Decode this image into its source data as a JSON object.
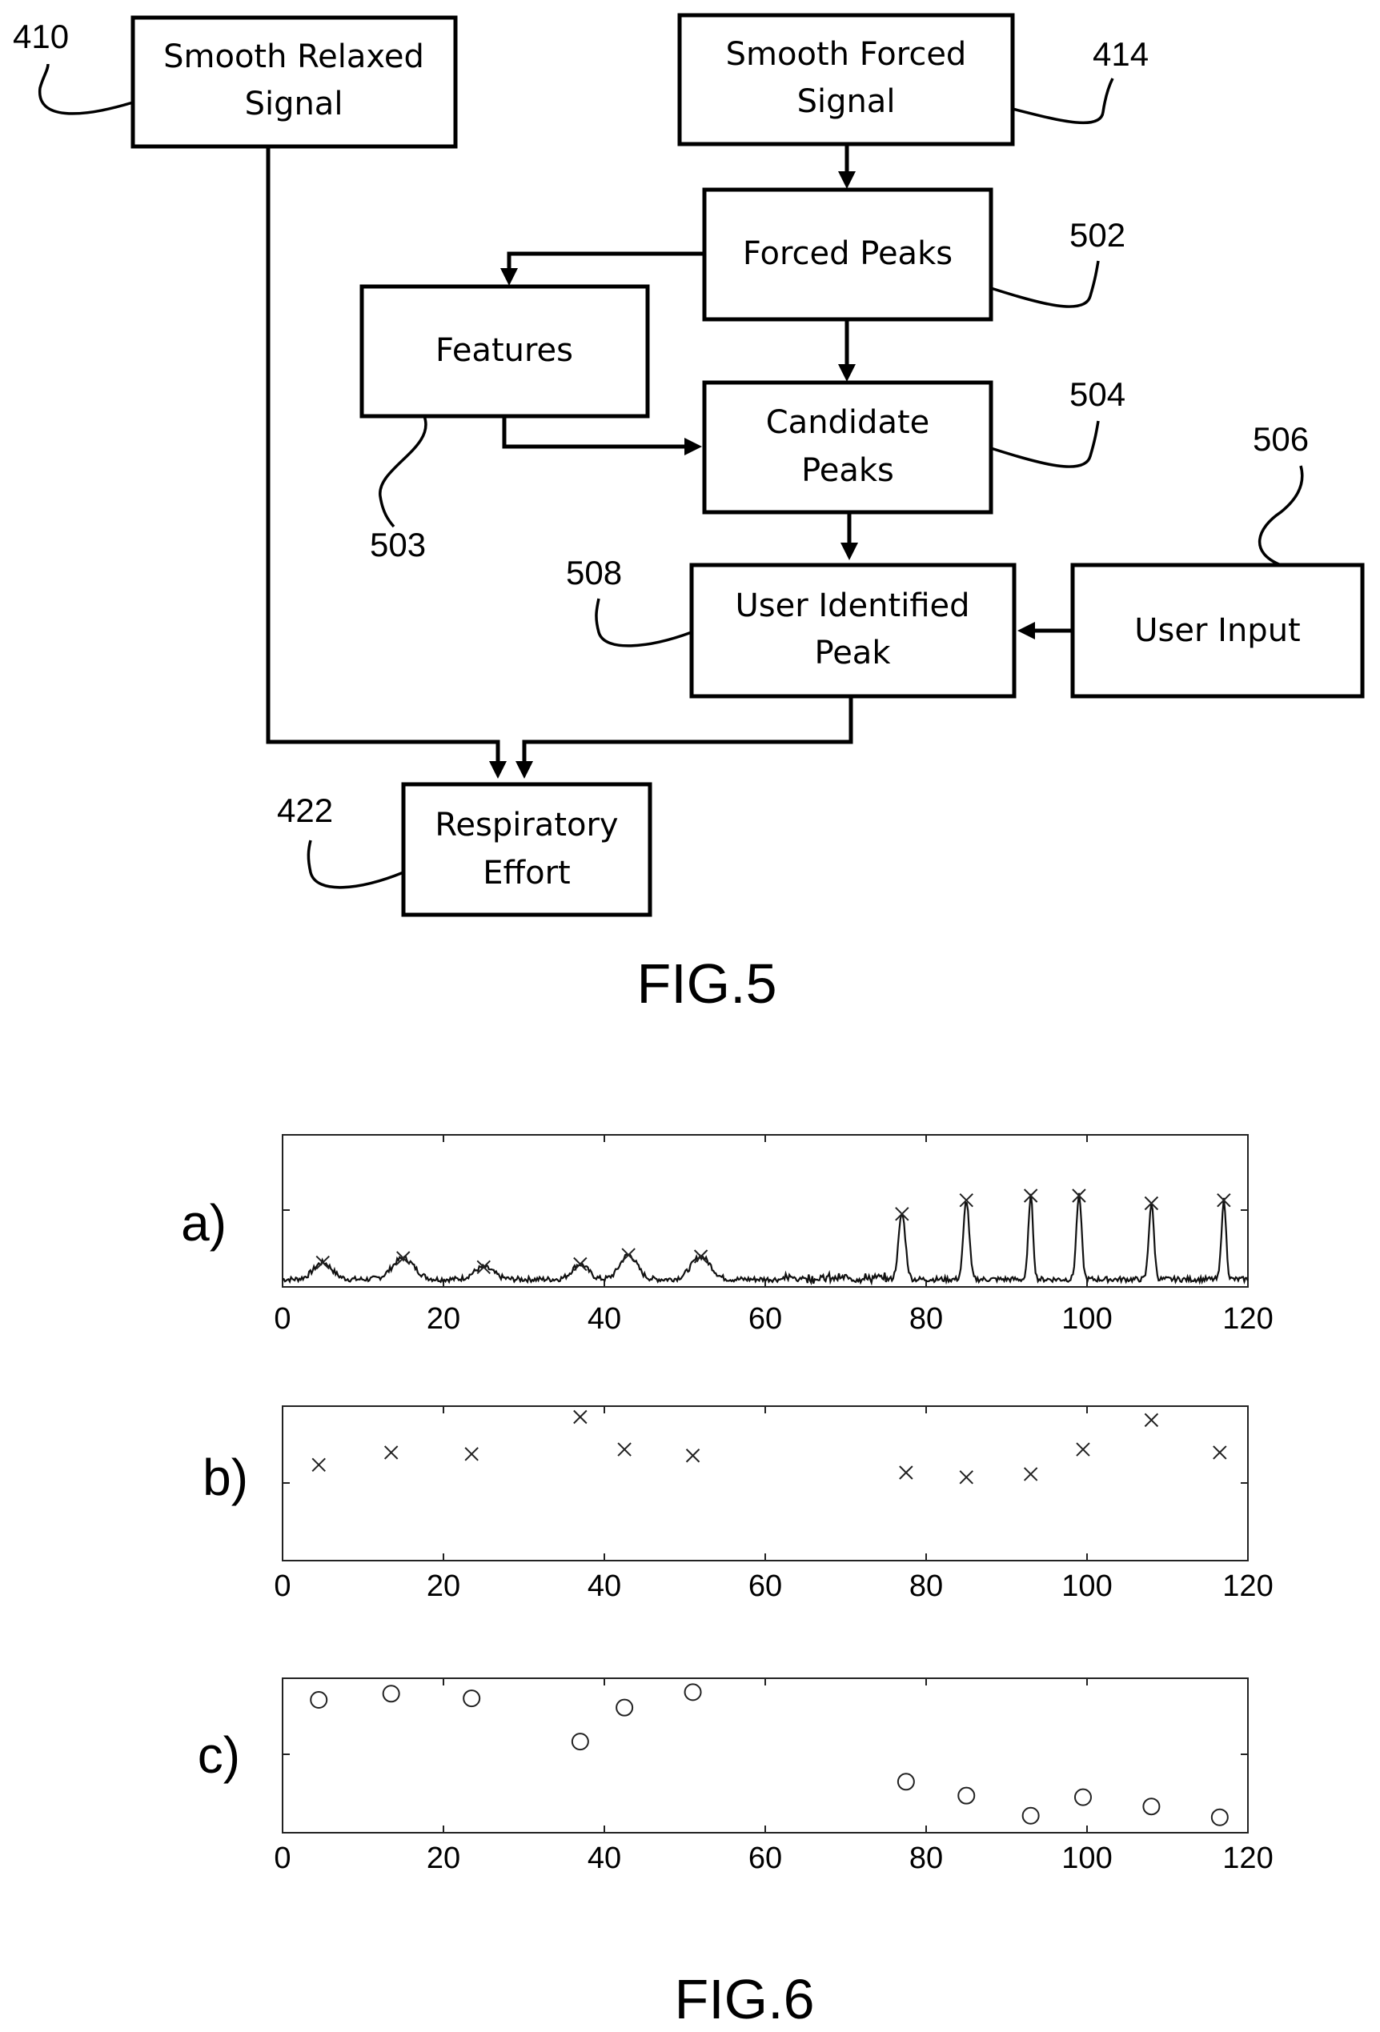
{
  "fig5": {
    "caption": "FIG.5",
    "boxes": {
      "smooth_relaxed": {
        "lines": [
          "Smooth Relaxed",
          "Signal"
        ],
        "ref": "410"
      },
      "smooth_forced": {
        "lines": [
          "Smooth Forced",
          "Signal"
        ],
        "ref": "414"
      },
      "forced_peaks": {
        "lines": [
          "Forced Peaks"
        ],
        "ref": "502"
      },
      "features": {
        "lines": [
          "Features"
        ],
        "ref": "503"
      },
      "candidate_peaks": {
        "lines": [
          "Candidate",
          "Peaks"
        ],
        "ref": "504"
      },
      "user_input": {
        "lines": [
          "User Input"
        ],
        "ref": "506"
      },
      "user_identified_peak": {
        "lines": [
          "User Identified",
          "Peak"
        ],
        "ref": "508"
      },
      "respiratory_effort": {
        "lines": [
          "Respiratory",
          "Effort"
        ],
        "ref": "422"
      }
    }
  },
  "fig6": {
    "caption": "FIG.6",
    "panel_labels": [
      "a)",
      "b)",
      "c)"
    ]
  },
  "chart_data": [
    {
      "type": "line",
      "panel": "a)",
      "xlim": [
        0,
        120
      ],
      "xticks": [
        0,
        20,
        40,
        60,
        80,
        100,
        120
      ],
      "yticks": [],
      "signal_baseline": 0.05,
      "peaks": [
        {
          "x": 5,
          "y": 0.16,
          "w": 1.6
        },
        {
          "x": 15,
          "y": 0.19,
          "w": 1.9
        },
        {
          "x": 25,
          "y": 0.13,
          "w": 1.7
        },
        {
          "x": 37,
          "y": 0.15,
          "w": 1.4
        },
        {
          "x": 43,
          "y": 0.21,
          "w": 1.5
        },
        {
          "x": 52,
          "y": 0.2,
          "w": 1.7
        },
        {
          "x": 77,
          "y": 0.48,
          "w": 0.6
        },
        {
          "x": 85,
          "y": 0.57,
          "w": 0.5
        },
        {
          "x": 93,
          "y": 0.6,
          "w": 0.4
        },
        {
          "x": 99,
          "y": 0.6,
          "w": 0.45
        },
        {
          "x": 108,
          "y": 0.55,
          "w": 0.45
        },
        {
          "x": 117,
          "y": 0.57,
          "w": 0.4
        }
      ],
      "marker": "x"
    },
    {
      "type": "scatter",
      "panel": "b)",
      "xlim": [
        0,
        120
      ],
      "xticks": [
        0,
        20,
        40,
        60,
        80,
        100,
        120
      ],
      "marker": "x",
      "points": [
        {
          "x": 4.5,
          "y": 0.62
        },
        {
          "x": 13.5,
          "y": 0.7
        },
        {
          "x": 23.5,
          "y": 0.69
        },
        {
          "x": 37,
          "y": 0.93
        },
        {
          "x": 42.5,
          "y": 0.72
        },
        {
          "x": 51,
          "y": 0.68
        },
        {
          "x": 77.5,
          "y": 0.57
        },
        {
          "x": 85,
          "y": 0.54
        },
        {
          "x": 93,
          "y": 0.56
        },
        {
          "x": 99.5,
          "y": 0.72
        },
        {
          "x": 108,
          "y": 0.91
        },
        {
          "x": 116.5,
          "y": 0.7
        }
      ]
    },
    {
      "type": "scatter",
      "panel": "c)",
      "xlim": [
        0,
        120
      ],
      "xticks": [
        0,
        20,
        40,
        60,
        80,
        100,
        120
      ],
      "marker": "o",
      "points": [
        {
          "x": 4.5,
          "y": 0.86
        },
        {
          "x": 13.5,
          "y": 0.9
        },
        {
          "x": 23.5,
          "y": 0.87
        },
        {
          "x": 37,
          "y": 0.59
        },
        {
          "x": 42.5,
          "y": 0.81
        },
        {
          "x": 51,
          "y": 0.91
        },
        {
          "x": 77.5,
          "y": 0.33
        },
        {
          "x": 85,
          "y": 0.24
        },
        {
          "x": 93,
          "y": 0.11
        },
        {
          "x": 99.5,
          "y": 0.23
        },
        {
          "x": 108,
          "y": 0.17
        },
        {
          "x": 116.5,
          "y": 0.1
        }
      ]
    }
  ]
}
